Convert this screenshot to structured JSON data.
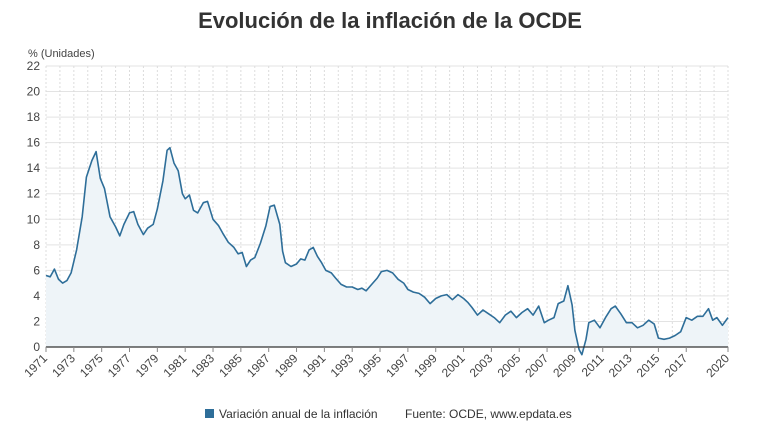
{
  "chart_data": {
    "type": "area",
    "title": "Evolución de la inflación de la OCDE",
    "ylabel": "% (Unidades)",
    "xlabel": "",
    "ylim": [
      -1,
      22
    ],
    "xlim": [
      1971,
      2020
    ],
    "y_ticks": [
      0,
      2,
      4,
      6,
      8,
      10,
      12,
      14,
      16,
      18,
      20,
      22
    ],
    "x_ticks": [
      1971,
      1973,
      1975,
      1977,
      1979,
      1981,
      1983,
      1985,
      1987,
      1989,
      1991,
      1993,
      1995,
      1997,
      1999,
      2001,
      2003,
      2005,
      2007,
      2009,
      2011,
      2013,
      2015,
      2017,
      2020
    ],
    "grid": true,
    "legend_position": "bottom",
    "series": [
      {
        "name": "Variación anual de la inflación",
        "color": "#2e6e99",
        "fill": "#eef4f8",
        "points": [
          [
            1971.0,
            5.6
          ],
          [
            1971.3,
            5.5
          ],
          [
            1971.6,
            6.1
          ],
          [
            1971.9,
            5.3
          ],
          [
            1972.2,
            5.0
          ],
          [
            1972.5,
            5.2
          ],
          [
            1972.8,
            5.8
          ],
          [
            1973.2,
            7.6
          ],
          [
            1973.6,
            10.2
          ],
          [
            1973.9,
            13.3
          ],
          [
            1974.3,
            14.6
          ],
          [
            1974.6,
            15.3
          ],
          [
            1974.9,
            13.2
          ],
          [
            1975.2,
            12.4
          ],
          [
            1975.6,
            10.2
          ],
          [
            1976.0,
            9.4
          ],
          [
            1976.3,
            8.7
          ],
          [
            1976.6,
            9.6
          ],
          [
            1977.0,
            10.5
          ],
          [
            1977.3,
            10.6
          ],
          [
            1977.6,
            9.6
          ],
          [
            1978.0,
            8.8
          ],
          [
            1978.3,
            9.3
          ],
          [
            1978.7,
            9.6
          ],
          [
            1979.0,
            10.8
          ],
          [
            1979.4,
            13.0
          ],
          [
            1979.7,
            15.4
          ],
          [
            1979.9,
            15.6
          ],
          [
            1980.2,
            14.4
          ],
          [
            1980.5,
            13.8
          ],
          [
            1980.8,
            12.0
          ],
          [
            1981.0,
            11.6
          ],
          [
            1981.3,
            11.9
          ],
          [
            1981.6,
            10.7
          ],
          [
            1981.9,
            10.5
          ],
          [
            1982.3,
            11.3
          ],
          [
            1982.6,
            11.4
          ],
          [
            1983.0,
            10.0
          ],
          [
            1983.4,
            9.5
          ],
          [
            1983.7,
            8.9
          ],
          [
            1984.1,
            8.2
          ],
          [
            1984.5,
            7.8
          ],
          [
            1984.8,
            7.3
          ],
          [
            1985.1,
            7.4
          ],
          [
            1985.4,
            6.3
          ],
          [
            1985.7,
            6.8
          ],
          [
            1986.0,
            7.0
          ],
          [
            1986.4,
            8.1
          ],
          [
            1986.8,
            9.5
          ],
          [
            1987.1,
            11.0
          ],
          [
            1987.4,
            11.1
          ],
          [
            1987.8,
            9.6
          ],
          [
            1988.0,
            7.5
          ],
          [
            1988.2,
            6.6
          ],
          [
            1988.6,
            6.3
          ],
          [
            1989.0,
            6.5
          ],
          [
            1989.3,
            6.9
          ],
          [
            1989.6,
            6.8
          ],
          [
            1989.9,
            7.6
          ],
          [
            1990.2,
            7.8
          ],
          [
            1990.5,
            7.1
          ],
          [
            1990.8,
            6.6
          ],
          [
            1991.1,
            6.0
          ],
          [
            1991.5,
            5.8
          ],
          [
            1991.8,
            5.4
          ],
          [
            1992.2,
            4.9
          ],
          [
            1992.6,
            4.7
          ],
          [
            1993.0,
            4.7
          ],
          [
            1993.4,
            4.5
          ],
          [
            1993.7,
            4.6
          ],
          [
            1994.0,
            4.4
          ],
          [
            1994.4,
            4.9
          ],
          [
            1994.8,
            5.4
          ],
          [
            1995.1,
            5.9
          ],
          [
            1995.5,
            6.0
          ],
          [
            1995.9,
            5.8
          ],
          [
            1996.3,
            5.3
          ],
          [
            1996.7,
            5.0
          ],
          [
            1997.0,
            4.5
          ],
          [
            1997.4,
            4.3
          ],
          [
            1997.8,
            4.2
          ],
          [
            1998.2,
            3.9
          ],
          [
            1998.6,
            3.4
          ],
          [
            1999.0,
            3.8
          ],
          [
            1999.4,
            4.0
          ],
          [
            1999.8,
            4.1
          ],
          [
            2000.2,
            3.7
          ],
          [
            2000.6,
            4.1
          ],
          [
            2001.0,
            3.8
          ],
          [
            2001.3,
            3.5
          ],
          [
            2001.6,
            3.1
          ],
          [
            2002.0,
            2.5
          ],
          [
            2002.4,
            2.9
          ],
          [
            2002.8,
            2.6
          ],
          [
            2003.2,
            2.3
          ],
          [
            2003.6,
            1.9
          ],
          [
            2004.0,
            2.5
          ],
          [
            2004.4,
            2.8
          ],
          [
            2004.8,
            2.3
          ],
          [
            2005.2,
            2.7
          ],
          [
            2005.6,
            3.0
          ],
          [
            2006.0,
            2.5
          ],
          [
            2006.4,
            3.2
          ],
          [
            2006.8,
            1.9
          ],
          [
            2007.1,
            2.1
          ],
          [
            2007.5,
            2.3
          ],
          [
            2007.8,
            3.4
          ],
          [
            2008.2,
            3.6
          ],
          [
            2008.5,
            4.8
          ],
          [
            2008.8,
            3.3
          ],
          [
            2009.0,
            1.3
          ],
          [
            2009.3,
            -0.2
          ],
          [
            2009.5,
            -0.6
          ],
          [
            2009.8,
            0.6
          ],
          [
            2010.0,
            1.9
          ],
          [
            2010.4,
            2.1
          ],
          [
            2010.8,
            1.5
          ],
          [
            2011.2,
            2.3
          ],
          [
            2011.6,
            3.0
          ],
          [
            2011.9,
            3.2
          ],
          [
            2012.3,
            2.6
          ],
          [
            2012.7,
            1.9
          ],
          [
            2013.1,
            1.9
          ],
          [
            2013.5,
            1.5
          ],
          [
            2013.9,
            1.7
          ],
          [
            2014.3,
            2.1
          ],
          [
            2014.7,
            1.8
          ],
          [
            2015.0,
            0.7
          ],
          [
            2015.4,
            0.6
          ],
          [
            2015.8,
            0.7
          ],
          [
            2016.2,
            0.9
          ],
          [
            2016.6,
            1.2
          ],
          [
            2017.0,
            2.3
          ],
          [
            2017.4,
            2.1
          ],
          [
            2017.8,
            2.4
          ],
          [
            2018.2,
            2.4
          ],
          [
            2018.6,
            3.0
          ],
          [
            2018.9,
            2.1
          ],
          [
            2019.2,
            2.3
          ],
          [
            2019.6,
            1.7
          ],
          [
            2020.0,
            2.3
          ]
        ]
      }
    ],
    "source": "Fuente: OCDE, www.epdata.es"
  }
}
